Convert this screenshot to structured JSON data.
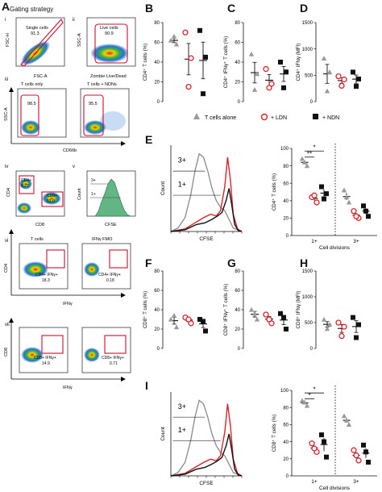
{
  "panel_labels": [
    "A",
    "B",
    "C",
    "D",
    "E",
    "F",
    "G",
    "H",
    "I"
  ],
  "gating": {
    "title": "Gating strategy",
    "subpanels": [
      "i",
      "ii",
      "iii",
      "iv",
      "v",
      "vi",
      "vii"
    ],
    "i": {
      "gate": "Single cells",
      "value": "91.3",
      "xlabel": "FSC-A",
      "ylabel": "FSC-H"
    },
    "ii": {
      "gate": "Live cells",
      "value": "90.9",
      "xlabel": "Zombie Live/Dead",
      "ylabel": "SSC-A"
    },
    "iii_a": {
      "gate": "T cells only",
      "value": "98.5"
    },
    "iii_b": {
      "gate": "T cells + NDNs",
      "value": "95.5"
    },
    "iii_axes": {
      "xlabel": "CD66b",
      "ylabel": "SSC-A"
    },
    "iv": {
      "g1": "CD4+",
      "v1": "8.27",
      "g2": "CD8+",
      "v2": "51.0",
      "xlabel": "CD8",
      "ylabel": "CD4"
    },
    "v": {
      "g1": "3+",
      "g2": "1+",
      "xlabel": "CFSE",
      "ylabel": "Count"
    },
    "vi_a": {
      "title": "T cells",
      "gate": "CD4+ IFNγ+",
      "value": "18.3"
    },
    "vi_b": {
      "title": "IFNγ FMO",
      "gate": "CD4+ IFNγ+",
      "value": "0.18"
    },
    "vi_axes": {
      "xlabel": "IFNγ",
      "ylabel": "CD4"
    },
    "vii_a": {
      "gate": "CD8+ IFNγ+",
      "value": "14.9"
    },
    "vii_b": {
      "gate": "CD8+ IFNγ+",
      "value": "0.71"
    },
    "vii_axes": {
      "xlabel": "IFNγ",
      "ylabel": "CD8"
    }
  },
  "legend": [
    "T cells alone",
    "+ LDN",
    "+ NDN"
  ],
  "colors": {
    "alone": "#9a9a9a",
    "ldn": "#d9232a",
    "ndn": "#111111",
    "flow_green": "#2e9e5b"
  },
  "chart_data": [
    {
      "panel": "B",
      "type": "scatter",
      "ylabel": "CD4⁺ T cells (%)",
      "ylim": [
        0,
        80
      ],
      "yticks": [
        0,
        20,
        40,
        60,
        80
      ],
      "series": [
        {
          "name": "T cells alone",
          "values": [
            62,
            58,
            66
          ]
        },
        {
          "name": "+ LDN",
          "values": [
            70,
            44,
            15
          ]
        },
        {
          "name": "+ NDN",
          "values": [
            72,
            45,
            8
          ]
        }
      ]
    },
    {
      "panel": "C",
      "type": "scatter",
      "ylabel": "CD4⁺ IFNγ⁺ T cells (%)",
      "ylim": [
        0,
        80
      ],
      "yticks": [
        0,
        20,
        40,
        60,
        80
      ],
      "series": [
        {
          "name": "T cells alone",
          "values": [
            48,
            28,
            12
          ]
        },
        {
          "name": "+ LDN",
          "values": [
            33,
            18,
            14
          ]
        },
        {
          "name": "+ NDN",
          "values": [
            40,
            30,
            14
          ]
        }
      ]
    },
    {
      "panel": "D",
      "type": "scatter",
      "ylabel": "CD4⁺ IFNγ (MFI)",
      "ylim": [
        0,
        1500
      ],
      "yticks": [
        0,
        500,
        1000,
        1500
      ],
      "series": [
        {
          "name": "T cells alone",
          "values": [
            820,
            560,
            200
          ]
        },
        {
          "name": "+ LDN",
          "values": [
            480,
            420,
            300
          ]
        },
        {
          "name": "+ NDN",
          "values": [
            560,
            430,
            290
          ]
        }
      ]
    },
    {
      "panel": "E",
      "type": "line",
      "title": "",
      "xlabel": "CFSE",
      "ylabel": "Count",
      "annotations": [
        "3+",
        "1+"
      ],
      "note": "histogram overlay: T cells alone (grey), + LDN (red), + NDN (black)"
    },
    {
      "panel": "E2",
      "type": "scatter",
      "ylabel": "CD4⁺ T cells (%)",
      "xlabel": "Cell divisions",
      "ylim": [
        0,
        100
      ],
      "yticks": [
        0,
        20,
        40,
        60,
        80,
        100
      ],
      "categories": [
        "1+",
        "3+"
      ],
      "significance": [
        "*",
        "**"
      ],
      "series": [
        {
          "name": "T cells alone",
          "values": {
            "1+": [
              88,
              80,
              84
            ],
            "3+": [
              52,
              38,
              44
            ]
          }
        },
        {
          "name": "+ LDN",
          "values": {
            "1+": [
              44,
              38,
              46
            ],
            "3+": [
              28,
              20,
              22
            ]
          }
        },
        {
          "name": "+ NDN",
          "values": {
            "1+": [
              56,
              48,
              42
            ],
            "3+": [
              34,
              22,
              28
            ]
          }
        }
      ]
    },
    {
      "panel": "F",
      "type": "scatter",
      "ylabel": "CD8⁺ T cells (%)",
      "ylim": [
        0,
        80
      ],
      "yticks": [
        0,
        20,
        40,
        60,
        80
      ],
      "series": [
        {
          "name": "T cells alone",
          "values": [
            30,
            22,
            34
          ]
        },
        {
          "name": "+ LDN",
          "values": [
            32,
            26,
            30
          ]
        },
        {
          "name": "+ NDN",
          "values": [
            30,
            18,
            28
          ]
        }
      ]
    },
    {
      "panel": "G",
      "type": "scatter",
      "ylabel": "CD8⁺ IFNγ⁺ T cells (%)",
      "ylim": [
        0,
        80
      ],
      "yticks": [
        0,
        20,
        40,
        60,
        80
      ],
      "series": [
        {
          "name": "T cells alone",
          "values": [
            40,
            30,
            36
          ]
        },
        {
          "name": "+ LDN",
          "values": [
            35,
            26,
            30
          ]
        },
        {
          "name": "+ NDN",
          "values": [
            36,
            20,
            32
          ]
        }
      ]
    },
    {
      "panel": "H",
      "type": "scatter",
      "ylabel": "CD8⁺ IFNγ (MFI)",
      "ylim": [
        0,
        1500
      ],
      "yticks": [
        0,
        500,
        1000,
        1500
      ],
      "series": [
        {
          "name": "T cells alone",
          "values": [
            560,
            460,
            380
          ]
        },
        {
          "name": "+ LDN",
          "values": [
            500,
            420,
            240
          ]
        },
        {
          "name": "+ NDN",
          "values": [
            600,
            460,
            210
          ]
        }
      ]
    },
    {
      "panel": "I",
      "type": "line",
      "xlabel": "CFSE",
      "ylabel": "Count",
      "annotations": [
        "3+",
        "1+"
      ],
      "note": "histogram overlay: T cells alone (grey), + LDN (red), + NDN (black)"
    },
    {
      "panel": "I2",
      "type": "scatter",
      "ylabel": "CD8⁺ T cells (%)",
      "xlabel": "Cell divisions",
      "ylim": [
        0,
        100
      ],
      "yticks": [
        0,
        20,
        40,
        60,
        80,
        100
      ],
      "categories": [
        "1+",
        "3+"
      ],
      "significance": [
        "*",
        "*"
      ],
      "series": [
        {
          "name": "T cells alone",
          "values": {
            "1+": [
              88,
              82,
              86
            ],
            "3+": [
              70,
              60,
              65
            ]
          }
        },
        {
          "name": "+ LDN",
          "values": {
            "1+": [
              38,
              28,
              32
            ],
            "3+": [
              30,
              18,
              24
            ]
          }
        },
        {
          "name": "+ NDN",
          "values": {
            "1+": [
              48,
              22,
              40
            ],
            "3+": [
              36,
              16,
              28
            ]
          }
        }
      ]
    }
  ]
}
